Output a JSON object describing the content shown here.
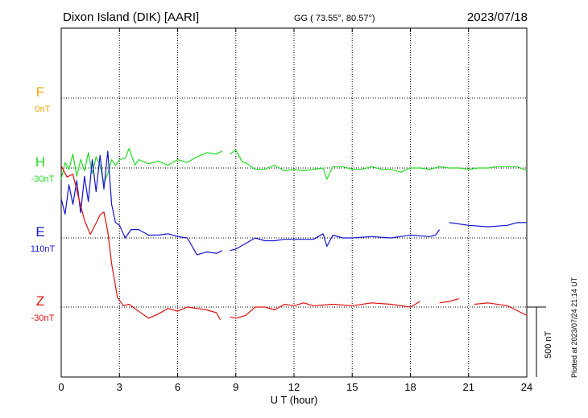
{
  "header": {
    "station": "Dixon Island (DIK)  [AARI]",
    "coords": "GG ( 73.55°,  80.57°)",
    "date": "2023/07/18"
  },
  "side_note": "Plotted at 2023/07/24 21:14 UT",
  "colors": {
    "F": "#f0a800",
    "H": "#22dd22",
    "E": "#1414d2",
    "Z": "#e01010",
    "axis": "#000000"
  },
  "chart_data": {
    "type": "line",
    "xlabel": "U T (hour)",
    "xlim": [
      0,
      24
    ],
    "xticks": [
      "0",
      "3",
      "6",
      "9",
      "12",
      "15",
      "18",
      "21",
      "24"
    ],
    "scale_bar": "500 nT",
    "series": [
      {
        "name": "F",
        "offset": "0nT",
        "points": []
      },
      {
        "name": "H",
        "offset": "-30nT",
        "points": [
          [
            0,
            -80
          ],
          [
            0.2,
            40
          ],
          [
            0.4,
            -10
          ],
          [
            0.6,
            100
          ],
          [
            0.8,
            -60
          ],
          [
            1,
            60
          ],
          [
            1.2,
            -20
          ],
          [
            1.4,
            110
          ],
          [
            1.6,
            -40
          ],
          [
            1.8,
            80
          ],
          [
            2,
            20
          ],
          [
            2.2,
            -110
          ],
          [
            2.4,
            -40
          ],
          [
            2.6,
            60
          ],
          [
            2.8,
            20
          ],
          [
            3,
            60
          ],
          [
            3.3,
            70
          ],
          [
            3.5,
            140
          ],
          [
            3.8,
            20
          ],
          [
            4,
            60
          ],
          [
            4.5,
            30
          ],
          [
            5,
            50
          ],
          [
            5.5,
            20
          ],
          [
            6,
            60
          ],
          [
            6.5,
            40
          ],
          [
            7,
            80
          ],
          [
            7.5,
            110
          ],
          [
            8,
            100
          ],
          [
            8.3,
            120
          ],
          [
            8.6,
            null
          ],
          [
            8.7,
            100
          ],
          [
            9,
            130
          ],
          [
            9.3,
            50
          ],
          [
            9.6,
            30
          ],
          [
            10,
            -10
          ],
          [
            10.5,
            -10
          ],
          [
            11,
            20
          ],
          [
            11.5,
            -20
          ],
          [
            12,
            -10
          ],
          [
            12.5,
            -20
          ],
          [
            13,
            -10
          ],
          [
            13.5,
            0
          ],
          [
            13.7,
            -80
          ],
          [
            14,
            10
          ],
          [
            14.5,
            10
          ],
          [
            15,
            -10
          ],
          [
            15.5,
            -10
          ],
          [
            16,
            10
          ],
          [
            16.5,
            -10
          ],
          [
            17,
            -10
          ],
          [
            17.5,
            -30
          ],
          [
            18,
            0
          ],
          [
            18.5,
            0
          ],
          [
            19,
            -10
          ],
          [
            19.5,
            10
          ],
          [
            20,
            0
          ],
          [
            20.5,
            0
          ],
          [
            21,
            -10
          ],
          [
            21.5,
            0
          ],
          [
            22,
            0
          ],
          [
            22.5,
            10
          ],
          [
            23,
            10
          ],
          [
            23.5,
            10
          ],
          [
            24,
            -20
          ]
        ]
      },
      {
        "name": "E",
        "offset": "110nT",
        "points": [
          [
            0,
            280
          ],
          [
            0.2,
            170
          ],
          [
            0.4,
            380
          ],
          [
            0.6,
            240
          ],
          [
            0.8,
            410
          ],
          [
            1,
            180
          ],
          [
            1.2,
            440
          ],
          [
            1.4,
            260
          ],
          [
            1.6,
            560
          ],
          [
            1.8,
            330
          ],
          [
            2,
            590
          ],
          [
            2.2,
            350
          ],
          [
            2.4,
            620
          ],
          [
            2.6,
            240
          ],
          [
            2.8,
            110
          ],
          [
            3,
            90
          ],
          [
            3.3,
            0
          ],
          [
            3.6,
            60
          ],
          [
            4,
            60
          ],
          [
            4.5,
            20
          ],
          [
            5,
            20
          ],
          [
            5.5,
            30
          ],
          [
            6,
            10
          ],
          [
            6.5,
            0
          ],
          [
            7,
            -120
          ],
          [
            7.5,
            -100
          ],
          [
            8,
            -110
          ],
          [
            8.3,
            -90
          ],
          [
            8.5,
            null
          ],
          [
            8.7,
            -90
          ],
          [
            9,
            -80
          ],
          [
            9.5,
            -40
          ],
          [
            10,
            0
          ],
          [
            10.5,
            -20
          ],
          [
            11,
            -20
          ],
          [
            11.5,
            -10
          ],
          [
            12,
            -10
          ],
          [
            12.5,
            -10
          ],
          [
            13,
            -10
          ],
          [
            13.5,
            30
          ],
          [
            13.7,
            -60
          ],
          [
            14,
            20
          ],
          [
            14.5,
            0
          ],
          [
            15,
            0
          ],
          [
            16,
            10
          ],
          [
            17,
            0
          ],
          [
            18,
            20
          ],
          [
            19,
            10
          ],
          [
            19.3,
            20
          ],
          [
            19.5,
            60
          ],
          [
            19.8,
            null
          ],
          [
            20,
            110
          ],
          [
            21,
            90
          ],
          [
            22,
            80
          ],
          [
            23,
            90
          ],
          [
            23.5,
            110
          ],
          [
            24,
            110
          ]
        ]
      },
      {
        "name": "Z",
        "offset": "-30nT",
        "points": [
          [
            0,
            1010
          ],
          [
            0.3,
            930
          ],
          [
            0.6,
            950
          ],
          [
            0.9,
            780
          ],
          [
            1.2,
            620
          ],
          [
            1.5,
            520
          ],
          [
            1.8,
            600
          ],
          [
            2,
            660
          ],
          [
            2.2,
            680
          ],
          [
            2.4,
            540
          ],
          [
            2.6,
            310
          ],
          [
            2.9,
            70
          ],
          [
            3.2,
            10
          ],
          [
            3.5,
            20
          ],
          [
            4,
            -30
          ],
          [
            4.5,
            -80
          ],
          [
            5,
            -50
          ],
          [
            5.5,
            -10
          ],
          [
            6,
            -30
          ],
          [
            6.5,
            0
          ],
          [
            7,
            -10
          ],
          [
            7.5,
            -20
          ],
          [
            8,
            -40
          ],
          [
            8.2,
            -90
          ],
          [
            8.4,
            null
          ],
          [
            8.7,
            -70
          ],
          [
            9,
            -80
          ],
          [
            9.5,
            -60
          ],
          [
            10,
            0
          ],
          [
            10.5,
            0
          ],
          [
            11,
            -20
          ],
          [
            11.5,
            20
          ],
          [
            12,
            10
          ],
          [
            12.5,
            30
          ],
          [
            13,
            10
          ],
          [
            14,
            20
          ],
          [
            15,
            10
          ],
          [
            16,
            30
          ],
          [
            17,
            20
          ],
          [
            18,
            0
          ],
          [
            18.5,
            40
          ],
          [
            19,
            null
          ],
          [
            19.5,
            30
          ],
          [
            20,
            40
          ],
          [
            20.5,
            60
          ],
          [
            21,
            null
          ],
          [
            21.3,
            20
          ],
          [
            22,
            30
          ],
          [
            23,
            10
          ],
          [
            24,
            -60
          ]
        ]
      }
    ]
  }
}
